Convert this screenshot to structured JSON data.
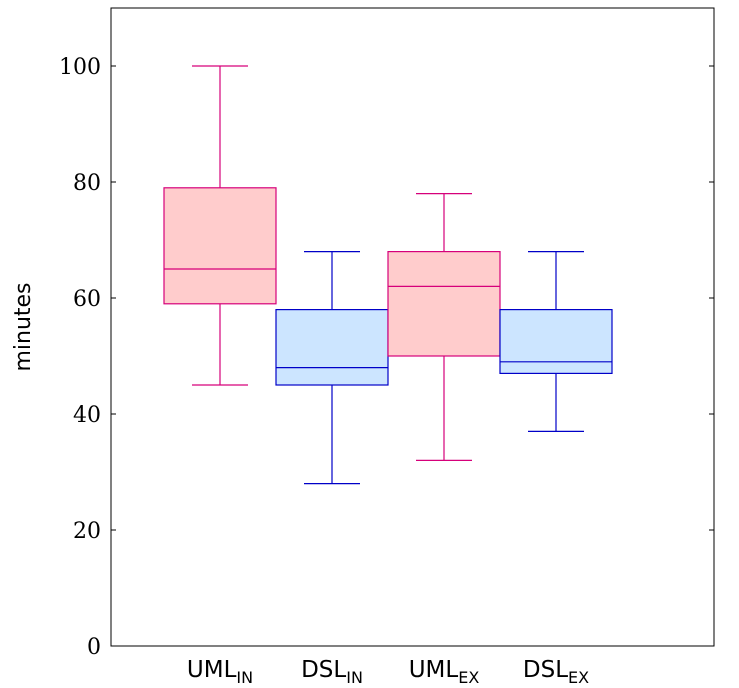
{
  "chart_data": {
    "type": "boxplot",
    "xlabel": "",
    "ylabel": "minutes",
    "ylim": [
      0,
      110
    ],
    "yticks": [
      0,
      20,
      40,
      60,
      80,
      100
    ],
    "grid": false,
    "categories": [
      {
        "base": "UML",
        "sub": "IN",
        "whisker_low": 45,
        "q1": 59,
        "median": 65,
        "q3": 79,
        "whisker_high": 100,
        "color": "#d6007a",
        "fill": "#ffcccc"
      },
      {
        "base": "DSL",
        "sub": "IN",
        "whisker_low": 28,
        "q1": 45,
        "median": 48,
        "q3": 58,
        "whisker_high": 68,
        "color": "#0000c8",
        "fill": "#cce5ff"
      },
      {
        "base": "UML",
        "sub": "EX",
        "whisker_low": 32,
        "q1": 50,
        "median": 62,
        "q3": 68,
        "whisker_high": 78,
        "color": "#d6007a",
        "fill": "#ffcccc"
      },
      {
        "base": "DSL",
        "sub": "EX",
        "whisker_low": 37,
        "q1": 47,
        "median": 49,
        "q3": 58,
        "whisker_high": 68,
        "color": "#0000c8",
        "fill": "#cce5ff"
      }
    ]
  }
}
